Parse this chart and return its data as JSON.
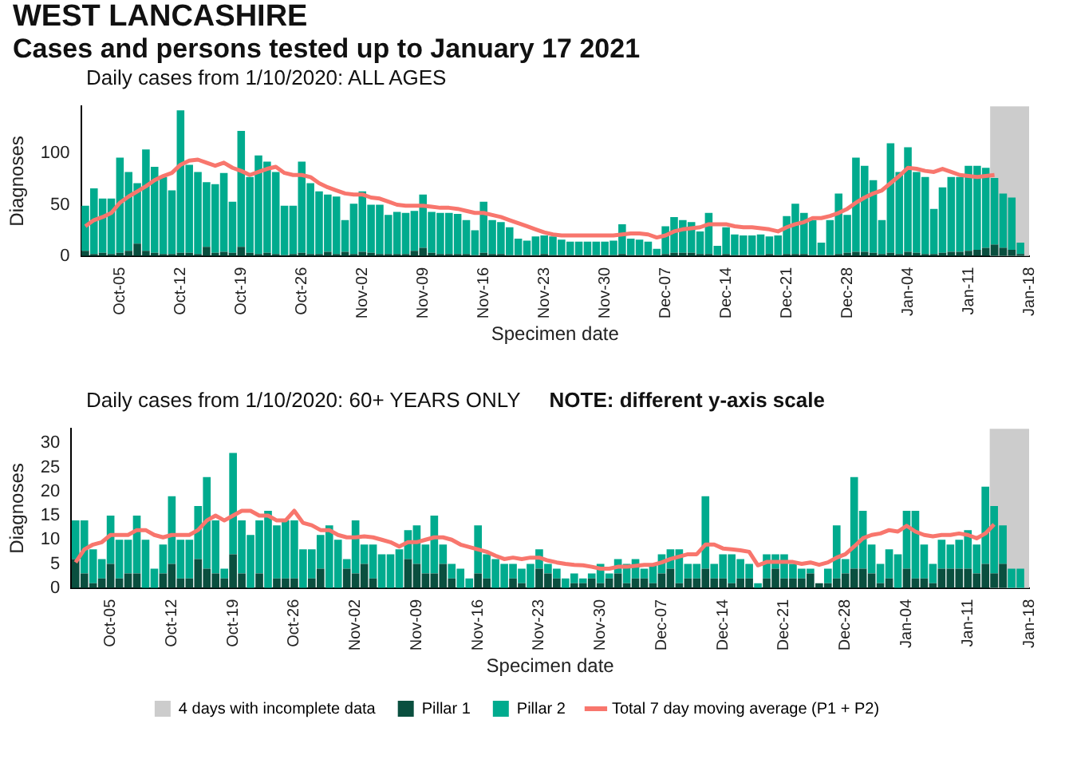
{
  "chart_data": [
    {
      "type": "bar",
      "title": "WEST LANCASHIRE",
      "subtitle": "Cases and persons tested up to January 17 2021",
      "annotations": [
        "Daily cases from 1/10/2020: ALL AGES"
      ],
      "xlabel": "Specimen date",
      "ylabel": "Diagnoses",
      "stacked": true,
      "grid": false,
      "legend": false,
      "x": [
        "2020-10-01",
        "2020-10-02",
        "2020-10-03",
        "2020-10-04",
        "2020-10-05",
        "2020-10-06",
        "2020-10-07",
        "2020-10-08",
        "2020-10-09",
        "2020-10-10",
        "2020-10-11",
        "2020-10-12",
        "2020-10-13",
        "2020-10-14",
        "2020-10-15",
        "2020-10-16",
        "2020-10-17",
        "2020-10-18",
        "2020-10-19",
        "2020-10-20",
        "2020-10-21",
        "2020-10-22",
        "2020-10-23",
        "2020-10-24",
        "2020-10-25",
        "2020-10-26",
        "2020-10-27",
        "2020-10-28",
        "2020-10-29",
        "2020-10-30",
        "2020-10-31",
        "2020-11-01",
        "2020-11-02",
        "2020-11-03",
        "2020-11-04",
        "2020-11-05",
        "2020-11-06",
        "2020-11-07",
        "2020-11-08",
        "2020-11-09",
        "2020-11-10",
        "2020-11-11",
        "2020-11-12",
        "2020-11-13",
        "2020-11-14",
        "2020-11-15",
        "2020-11-16",
        "2020-11-17",
        "2020-11-18",
        "2020-11-19",
        "2020-11-20",
        "2020-11-21",
        "2020-11-22",
        "2020-11-23",
        "2020-11-24",
        "2020-11-25",
        "2020-11-26",
        "2020-11-27",
        "2020-11-28",
        "2020-11-29",
        "2020-11-30",
        "2020-12-01",
        "2020-12-02",
        "2020-12-03",
        "2020-12-04",
        "2020-12-05",
        "2020-12-06",
        "2020-12-07",
        "2020-12-08",
        "2020-12-09",
        "2020-12-10",
        "2020-12-11",
        "2020-12-12",
        "2020-12-13",
        "2020-12-14",
        "2020-12-15",
        "2020-12-16",
        "2020-12-17",
        "2020-12-18",
        "2020-12-19",
        "2020-12-20",
        "2020-12-21",
        "2020-12-22",
        "2020-12-23",
        "2020-12-24",
        "2020-12-25",
        "2020-12-26",
        "2020-12-27",
        "2020-12-28",
        "2020-12-29",
        "2020-12-30",
        "2020-12-31",
        "2021-01-01",
        "2021-01-02",
        "2021-01-03",
        "2021-01-04",
        "2021-01-05",
        "2021-01-06",
        "2021-01-07",
        "2021-01-08",
        "2021-01-09",
        "2021-01-10",
        "2021-01-11",
        "2021-01-12",
        "2021-01-13",
        "2021-01-14",
        "2021-01-15",
        "2021-01-16",
        "2021-01-17"
      ],
      "xlim": [
        "2020-09-30T12:00",
        "2021-01-18"
      ],
      "xticks": [
        {
          "value": "2020-10-05",
          "label": "Oct-05"
        },
        {
          "value": "2020-10-12",
          "label": "Oct-12"
        },
        {
          "value": "2020-10-19",
          "label": "Oct-19"
        },
        {
          "value": "2020-10-26",
          "label": "Oct-26"
        },
        {
          "value": "2020-11-02",
          "label": "Nov-02"
        },
        {
          "value": "2020-11-09",
          "label": "Nov-09"
        },
        {
          "value": "2020-11-16",
          "label": "Nov-16"
        },
        {
          "value": "2020-11-23",
          "label": "Nov-23"
        },
        {
          "value": "2020-11-30",
          "label": "Nov-30"
        },
        {
          "value": "2020-12-07",
          "label": "Dec-07"
        },
        {
          "value": "2020-12-14",
          "label": "Dec-14"
        },
        {
          "value": "2020-12-21",
          "label": "Dec-21"
        },
        {
          "value": "2020-12-28",
          "label": "Dec-28"
        },
        {
          "value": "2021-01-04",
          "label": "Jan-04"
        },
        {
          "value": "2021-01-11",
          "label": "Jan-11"
        },
        {
          "value": "2021-01-18",
          "label": "Jan-18"
        }
      ],
      "ylim": [
        0,
        146
      ],
      "yticks": [
        0,
        50,
        100
      ],
      "bands": [
        {
          "axis": "x",
          "from": "2021-01-13T12:00",
          "to": "2021-01-18",
          "color": "#cccccc"
        }
      ],
      "series": [
        {
          "color": "#0a4f3f",
          "values": [
            5,
            2,
            3,
            2,
            3,
            5,
            12,
            5,
            3,
            2,
            2,
            3,
            3,
            2,
            9,
            3,
            4,
            3,
            9,
            3,
            2,
            3,
            2,
            1,
            2,
            3,
            2,
            2,
            4,
            2,
            4,
            2,
            4,
            3,
            2,
            2,
            2,
            2,
            5,
            8,
            3,
            2,
            2,
            2,
            2,
            1,
            3,
            2,
            2,
            1,
            1,
            1,
            1,
            2,
            1,
            1,
            1,
            1,
            1,
            1,
            1,
            1,
            2,
            1,
            1,
            1,
            1,
            2,
            3,
            3,
            3,
            2,
            2,
            1,
            2,
            1,
            1,
            1,
            1,
            2,
            1,
            2,
            2,
            2,
            1,
            1,
            1,
            2,
            3,
            4,
            4,
            3,
            2,
            3,
            2,
            4,
            3,
            2,
            2,
            3,
            4,
            4,
            5,
            6,
            8,
            11,
            8,
            6,
            2
          ]
        },
        {
          "color": "#00ab8e",
          "values": [
            44,
            64,
            53,
            54,
            93,
            77,
            59,
            99,
            84,
            75,
            62,
            139,
            86,
            80,
            63,
            67,
            77,
            50,
            113,
            74,
            96,
            89,
            80,
            48,
            47,
            89,
            69,
            61,
            56,
            56,
            31,
            49,
            59,
            47,
            48,
            38,
            41,
            40,
            39,
            52,
            40,
            40,
            40,
            39,
            33,
            24,
            50,
            33,
            31,
            27,
            16,
            14,
            18,
            18,
            18,
            15,
            13,
            13,
            13,
            13,
            13,
            14,
            29,
            16,
            15,
            13,
            6,
            27,
            35,
            32,
            30,
            22,
            40,
            9,
            26,
            20,
            19,
            19,
            20,
            17,
            19,
            37,
            49,
            40,
            34,
            12,
            34,
            59,
            37,
            92,
            84,
            71,
            33,
            107,
            80,
            102,
            79,
            75,
            44,
            64,
            73,
            73,
            83,
            82,
            78,
            65,
            53,
            51,
            11
          ]
        },
        {
          "type": "line",
          "color": "#f8766d",
          "values": [
            29,
            35,
            38,
            42,
            52,
            58,
            63,
            68,
            74,
            78,
            81,
            89,
            93,
            94,
            91,
            88,
            91,
            86,
            83,
            79,
            82,
            85,
            87,
            81,
            79,
            79,
            77,
            71,
            67,
            64,
            61,
            60,
            60,
            57,
            56,
            53,
            50,
            49,
            49,
            49,
            48,
            47,
            47,
            46,
            44,
            42,
            42,
            40,
            38,
            35,
            32,
            29,
            26,
            23,
            21,
            20,
            20,
            20,
            20,
            20,
            20,
            20,
            21,
            22,
            22,
            21,
            18,
            20,
            24,
            26,
            27,
            28,
            31,
            31,
            31,
            29,
            28,
            28,
            27,
            26,
            24,
            28,
            31,
            33,
            37,
            37,
            39,
            42,
            46,
            52,
            57,
            61,
            64,
            71,
            78,
            86,
            85,
            83,
            82,
            85,
            82,
            79,
            78,
            77,
            78,
            79,
            null,
            null,
            null
          ]
        }
      ]
    },
    {
      "type": "bar",
      "title": "Daily cases from 1/10/2020: 60+ YEARS ONLY",
      "annotations": [
        "NOTE: different y-axis scale"
      ],
      "xlabel": "Specimen date",
      "ylabel": "Diagnoses",
      "stacked": true,
      "grid": false,
      "legend": "bottom",
      "x": [
        "2020-10-01",
        "2020-10-02",
        "2020-10-03",
        "2020-10-04",
        "2020-10-05",
        "2020-10-06",
        "2020-10-07",
        "2020-10-08",
        "2020-10-09",
        "2020-10-10",
        "2020-10-11",
        "2020-10-12",
        "2020-10-13",
        "2020-10-14",
        "2020-10-15",
        "2020-10-16",
        "2020-10-17",
        "2020-10-18",
        "2020-10-19",
        "2020-10-20",
        "2020-10-21",
        "2020-10-22",
        "2020-10-23",
        "2020-10-24",
        "2020-10-25",
        "2020-10-26",
        "2020-10-27",
        "2020-10-28",
        "2020-10-29",
        "2020-10-30",
        "2020-10-31",
        "2020-11-01",
        "2020-11-02",
        "2020-11-03",
        "2020-11-04",
        "2020-11-05",
        "2020-11-06",
        "2020-11-07",
        "2020-11-08",
        "2020-11-09",
        "2020-11-10",
        "2020-11-11",
        "2020-11-12",
        "2020-11-13",
        "2020-11-14",
        "2020-11-15",
        "2020-11-16",
        "2020-11-17",
        "2020-11-18",
        "2020-11-19",
        "2020-11-20",
        "2020-11-21",
        "2020-11-22",
        "2020-11-23",
        "2020-11-24",
        "2020-11-25",
        "2020-11-26",
        "2020-11-27",
        "2020-11-28",
        "2020-11-29",
        "2020-11-30",
        "2020-12-01",
        "2020-12-02",
        "2020-12-03",
        "2020-12-04",
        "2020-12-05",
        "2020-12-06",
        "2020-12-07",
        "2020-12-08",
        "2020-12-09",
        "2020-12-10",
        "2020-12-11",
        "2020-12-12",
        "2020-12-13",
        "2020-12-14",
        "2020-12-15",
        "2020-12-16",
        "2020-12-17",
        "2020-12-18",
        "2020-12-19",
        "2020-12-20",
        "2020-12-21",
        "2020-12-22",
        "2020-12-23",
        "2020-12-24",
        "2020-12-25",
        "2020-12-26",
        "2020-12-27",
        "2020-12-28",
        "2020-12-29",
        "2020-12-30",
        "2020-12-31",
        "2021-01-01",
        "2021-01-02",
        "2021-01-03",
        "2021-01-04",
        "2021-01-05",
        "2021-01-06",
        "2021-01-07",
        "2021-01-08",
        "2021-01-09",
        "2021-01-10",
        "2021-01-11",
        "2021-01-12",
        "2021-01-13",
        "2021-01-14",
        "2021-01-15",
        "2021-01-16",
        "2021-01-17"
      ],
      "xlim": [
        "2020-09-30T12:00",
        "2021-01-18"
      ],
      "xticks": [
        {
          "value": "2020-10-05",
          "label": "Oct-05"
        },
        {
          "value": "2020-10-12",
          "label": "Oct-12"
        },
        {
          "value": "2020-10-19",
          "label": "Oct-19"
        },
        {
          "value": "2020-10-26",
          "label": "Oct-26"
        },
        {
          "value": "2020-11-02",
          "label": "Nov-02"
        },
        {
          "value": "2020-11-09",
          "label": "Nov-09"
        },
        {
          "value": "2020-11-16",
          "label": "Nov-16"
        },
        {
          "value": "2020-11-23",
          "label": "Nov-23"
        },
        {
          "value": "2020-11-30",
          "label": "Nov-30"
        },
        {
          "value": "2020-12-07",
          "label": "Dec-07"
        },
        {
          "value": "2020-12-14",
          "label": "Dec-14"
        },
        {
          "value": "2020-12-21",
          "label": "Dec-21"
        },
        {
          "value": "2020-12-28",
          "label": "Dec-28"
        },
        {
          "value": "2021-01-04",
          "label": "Jan-04"
        },
        {
          "value": "2021-01-11",
          "label": "Jan-11"
        },
        {
          "value": "2021-01-18",
          "label": "Jan-18"
        }
      ],
      "ylim": [
        0,
        33
      ],
      "yticks": [
        0,
        5,
        10,
        15,
        20,
        25,
        30
      ],
      "bands": [
        {
          "axis": "x",
          "from": "2021-01-13T12:00",
          "to": "2021-01-18",
          "label": "4 days with incomplete data",
          "color": "#cccccc"
        }
      ],
      "series": [
        {
          "name": "Pillar 1",
          "color": "#0a4f3f",
          "values": [
            6,
            3,
            1,
            2,
            5,
            2,
            3,
            3,
            0,
            0,
            3,
            5,
            2,
            2,
            6,
            4,
            3,
            2,
            7,
            3,
            0,
            3,
            0,
            2,
            2,
            2,
            0,
            2,
            4,
            0,
            0,
            4,
            3,
            5,
            2,
            0,
            0,
            0,
            6,
            5,
            3,
            3,
            5,
            2,
            0,
            0,
            3,
            2,
            0,
            0,
            2,
            1,
            0,
            4,
            3,
            2,
            0,
            1,
            1,
            2,
            1,
            2,
            3,
            1,
            2,
            2,
            1,
            3,
            4,
            1,
            2,
            2,
            4,
            2,
            2,
            1,
            2,
            2,
            0,
            2,
            4,
            2,
            2,
            2,
            3,
            1,
            1,
            2,
            3,
            4,
            4,
            3,
            1,
            2,
            0,
            4,
            2,
            2,
            1,
            4,
            4,
            4,
            4,
            3,
            5,
            3,
            5,
            0,
            0
          ]
        },
        {
          "name": "Pillar 2",
          "color": "#00ab8e",
          "values": [
            8,
            11,
            7,
            4,
            10,
            8,
            7,
            12,
            10,
            4,
            6,
            14,
            8,
            8,
            11,
            19,
            11,
            2,
            21,
            11,
            11,
            11,
            16,
            11,
            12,
            12,
            8,
            6,
            7,
            13,
            10,
            2,
            11,
            4,
            7,
            7,
            7,
            8,
            6,
            8,
            6,
            12,
            4,
            3,
            4,
            2,
            10,
            5,
            6,
            5,
            3,
            3,
            5,
            4,
            2,
            2,
            2,
            2,
            1,
            1,
            4,
            1,
            3,
            4,
            4,
            2,
            4,
            4,
            4,
            7,
            3,
            3,
            15,
            3,
            5,
            6,
            4,
            3,
            1,
            5,
            3,
            5,
            3,
            2,
            1,
            0,
            3,
            11,
            3,
            19,
            12,
            6,
            4,
            6,
            7,
            12,
            14,
            7,
            4,
            6,
            5,
            6,
            8,
            6,
            16,
            14,
            8,
            4,
            4
          ]
        },
        {
          "name": "Total 7 day moving average (P1 + P2)",
          "type": "line",
          "color": "#f8766d",
          "values": [
            5.3,
            8,
            9,
            9.5,
            11,
            11,
            11,
            12,
            12,
            11,
            10.5,
            11,
            11,
            11,
            12,
            14,
            15,
            14,
            15,
            16,
            16,
            15,
            15,
            14,
            14,
            16,
            13.5,
            13,
            12,
            12,
            11,
            10.5,
            10.5,
            10.7,
            10.5,
            10,
            9.5,
            8.6,
            9.5,
            9.5,
            10,
            10.5,
            10.5,
            10,
            9,
            8.5,
            8,
            7.5,
            6.7,
            6,
            6.3,
            6,
            6.3,
            6.3,
            5.7,
            5.3,
            5,
            4.8,
            4.7,
            4.4,
            4,
            4,
            4.4,
            4.4,
            4.6,
            4.8,
            4.8,
            5.3,
            6,
            6.5,
            7,
            7,
            9,
            9,
            8.2,
            8,
            7.8,
            7.5,
            4.7,
            5.4,
            5.4,
            5.4,
            5.4,
            5,
            5.3,
            4.8,
            5.3,
            6.3,
            7,
            8.6,
            10.3,
            11,
            11.3,
            12,
            11.7,
            12.9,
            11.7,
            11,
            10.7,
            11,
            11,
            11.3,
            11,
            10.3,
            11.3,
            13.2,
            null,
            null,
            null
          ]
        }
      ]
    }
  ]
}
